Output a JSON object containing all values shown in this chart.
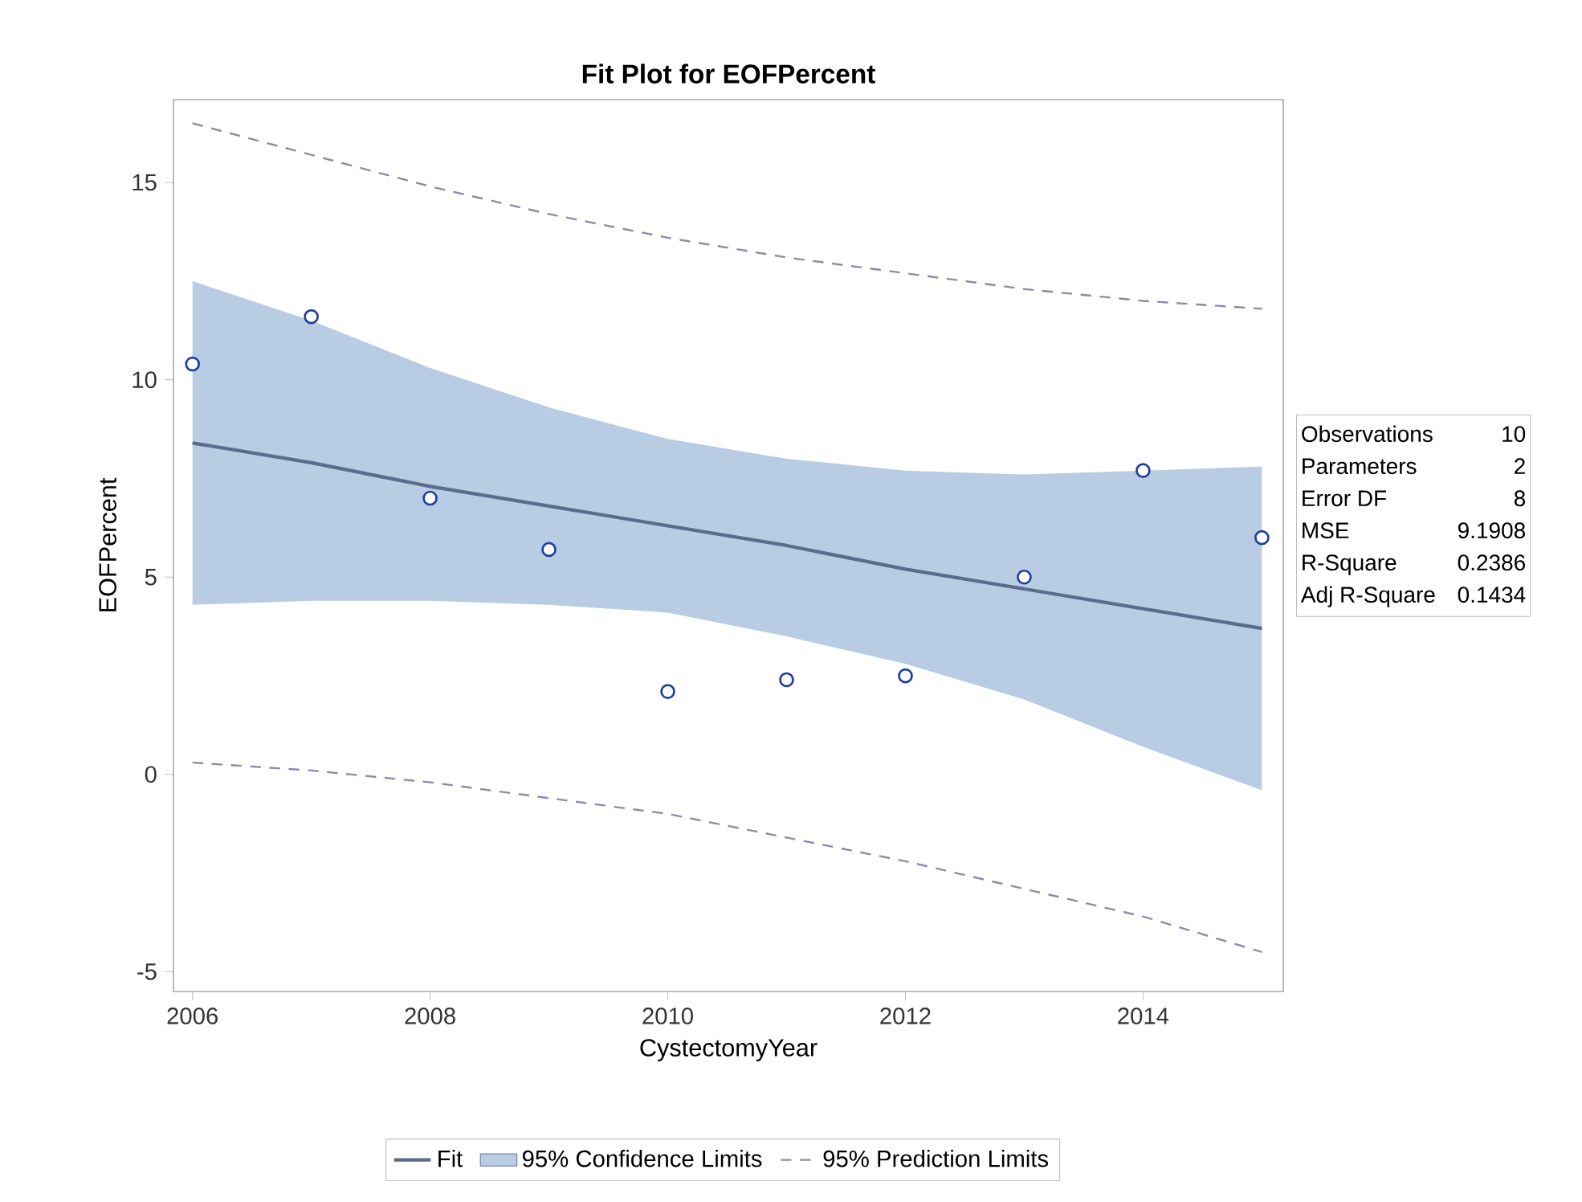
{
  "chart_data": {
    "type": "line",
    "title": "Fit Plot for EOFPercent",
    "xlabel": "CystectomyYear",
    "ylabel": "EOFPercent",
    "x": [
      2006,
      2007,
      2008,
      2009,
      2010,
      2011,
      2012,
      2013,
      2014,
      2015
    ],
    "series": [
      {
        "name": "Fit",
        "color": "#5a6b8c",
        "line_style": "solid",
        "marker": "none",
        "values": [
          8.4,
          7.9,
          7.3,
          6.8,
          6.3,
          5.8,
          5.2,
          4.7,
          4.2,
          3.7
        ],
        "lower": [
          4.3,
          4.4,
          4.4,
          4.3,
          4.1,
          3.5,
          2.8,
          1.9,
          0.7,
          -0.4
        ],
        "upper": [
          12.5,
          11.5,
          10.3,
          9.3,
          8.5,
          8.0,
          7.7,
          7.6,
          7.7,
          7.8
        ]
      },
      {
        "name": "95% Confidence Limits",
        "type": "area",
        "color": "#b8cce4",
        "values": [
          null,
          null,
          null,
          null,
          null,
          null,
          null,
          null,
          null,
          null
        ]
      },
      {
        "name": "95% Prediction Limits",
        "color": "#8c8ca8",
        "line_style": "dashed",
        "marker": "none",
        "values": [
          16.5,
          15.7,
          14.9,
          14.2,
          13.6,
          13.1,
          12.7,
          12.3,
          12.0,
          11.8
        ]
      },
      {
        "color": "#8c8ca8",
        "line_style": "dashed",
        "marker": "none",
        "values": [
          0.3,
          0.1,
          -0.2,
          -0.6,
          -1.0,
          -1.6,
          -2.2,
          -2.9,
          -3.6,
          -4.5
        ]
      },
      {
        "type": "scatter",
        "color": "#1f3f9f",
        "marker": "circle",
        "values": [
          10.4,
          11.6,
          7.0,
          5.7,
          2.1,
          2.4,
          2.5,
          5.0,
          7.7,
          6.0
        ]
      }
    ],
    "xlim": [
      2005.84,
      2015.18
    ],
    "ylim": [
      -5.5,
      17.1
    ],
    "xticks": [
      2006,
      2008,
      2010,
      2012,
      2014
    ],
    "yticks": [
      -5,
      0,
      5,
      10,
      15
    ],
    "legend": "bottom",
    "annotations": [
      "Observations",
      "10",
      "Parameters",
      "2",
      "Error DF",
      "8",
      "MSE",
      "9.1908",
      "R-Square",
      "0.2386",
      "Adj R-Square",
      "0.1434"
    ]
  }
}
